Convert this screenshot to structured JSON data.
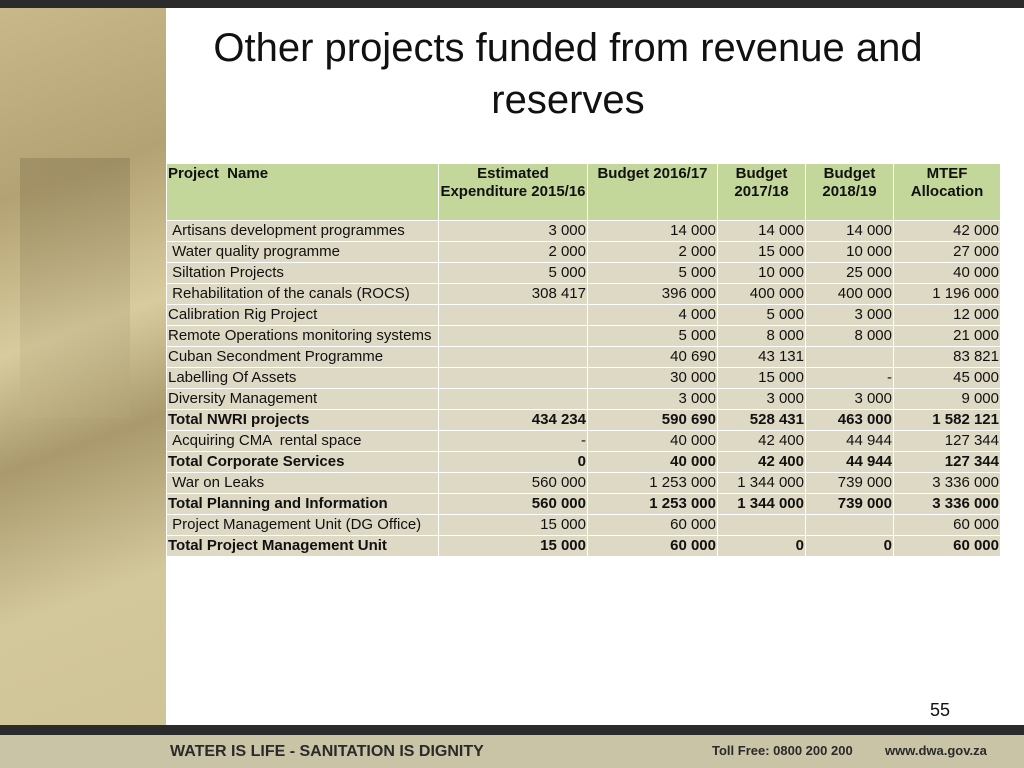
{
  "header": {
    "title": "Other projects funded from revenue and reserves"
  },
  "table": {
    "columns": [
      "Project  Name",
      "Estimated Expenditure 2015/16",
      "Budget 2016/17",
      "Budget 2017/18",
      "Budget 2018/19",
      "MTEF Allocation"
    ],
    "rows": [
      {
        "cells": [
          " Artisans development programmes",
          "3 000",
          "14 000",
          "14 000",
          "14 000",
          "42 000"
        ],
        "bold": false
      },
      {
        "cells": [
          " Water quality programme",
          "2 000",
          "2 000",
          "15 000",
          "10 000",
          "27 000"
        ],
        "bold": false
      },
      {
        "cells": [
          " Siltation Projects",
          "5 000",
          "5 000",
          "10 000",
          "25 000",
          "40 000"
        ],
        "bold": false
      },
      {
        "cells": [
          " Rehabilitation of the canals (ROCS)",
          "308 417",
          "396 000",
          "400 000",
          "400 000",
          "1 196 000"
        ],
        "bold": false
      },
      {
        "cells": [
          "Calibration Rig Project",
          null,
          "4 000",
          "5 000",
          "3 000",
          "12 000"
        ],
        "bold": false
      },
      {
        "cells": [
          "Remote Operations monitoring systems",
          null,
          "5 000",
          "8 000",
          "8 000",
          "21 000"
        ],
        "bold": false
      },
      {
        "cells": [
          "Cuban Secondment Programme",
          null,
          "40 690",
          "43 131",
          null,
          "83 821"
        ],
        "bold": false
      },
      {
        "cells": [
          "Labelling Of Assets",
          null,
          "30 000",
          "15 000",
          "-",
          "45 000"
        ],
        "bold": false
      },
      {
        "cells": [
          "Diversity Management",
          null,
          "3 000",
          "3 000",
          "3 000",
          "9 000"
        ],
        "bold": false
      },
      {
        "cells": [
          "Total NWRI projects",
          "434 234",
          "590 690",
          "528 431",
          "463 000",
          "1 582 121"
        ],
        "bold": true
      },
      {
        "cells": [
          " Acquiring CMA  rental space",
          "-",
          "40 000",
          "42 400",
          "44 944",
          "127 344"
        ],
        "bold": false
      },
      {
        "cells": [
          "Total Corporate Services",
          "0",
          "40 000",
          "42 400",
          "44 944",
          "127 344"
        ],
        "bold": true
      },
      {
        "cells": [
          " War on Leaks",
          "560 000",
          "1 253 000",
          "1 344 000",
          "739 000",
          "3 336 000"
        ],
        "bold": false
      },
      {
        "cells": [
          "Total Planning and Information",
          "560 000",
          "1 253 000",
          "1 344 000",
          "739 000",
          "3 336 000"
        ],
        "bold": true
      },
      {
        "cells": [
          " Project Management Unit (DG Office)",
          "15 000",
          "60 000",
          null,
          null,
          "60 000"
        ],
        "bold": false
      },
      {
        "cells": [
          "Total Project Management Unit",
          "15 000",
          "60 000",
          "0",
          "0",
          "60 000"
        ],
        "bold": true
      }
    ]
  },
  "page_number": "55",
  "footer": {
    "motto": "WATER IS LIFE - SANITATION IS DIGNITY",
    "toll_free": "Toll Free: 0800 200 200",
    "website": "www.dwa.gov.za"
  }
}
